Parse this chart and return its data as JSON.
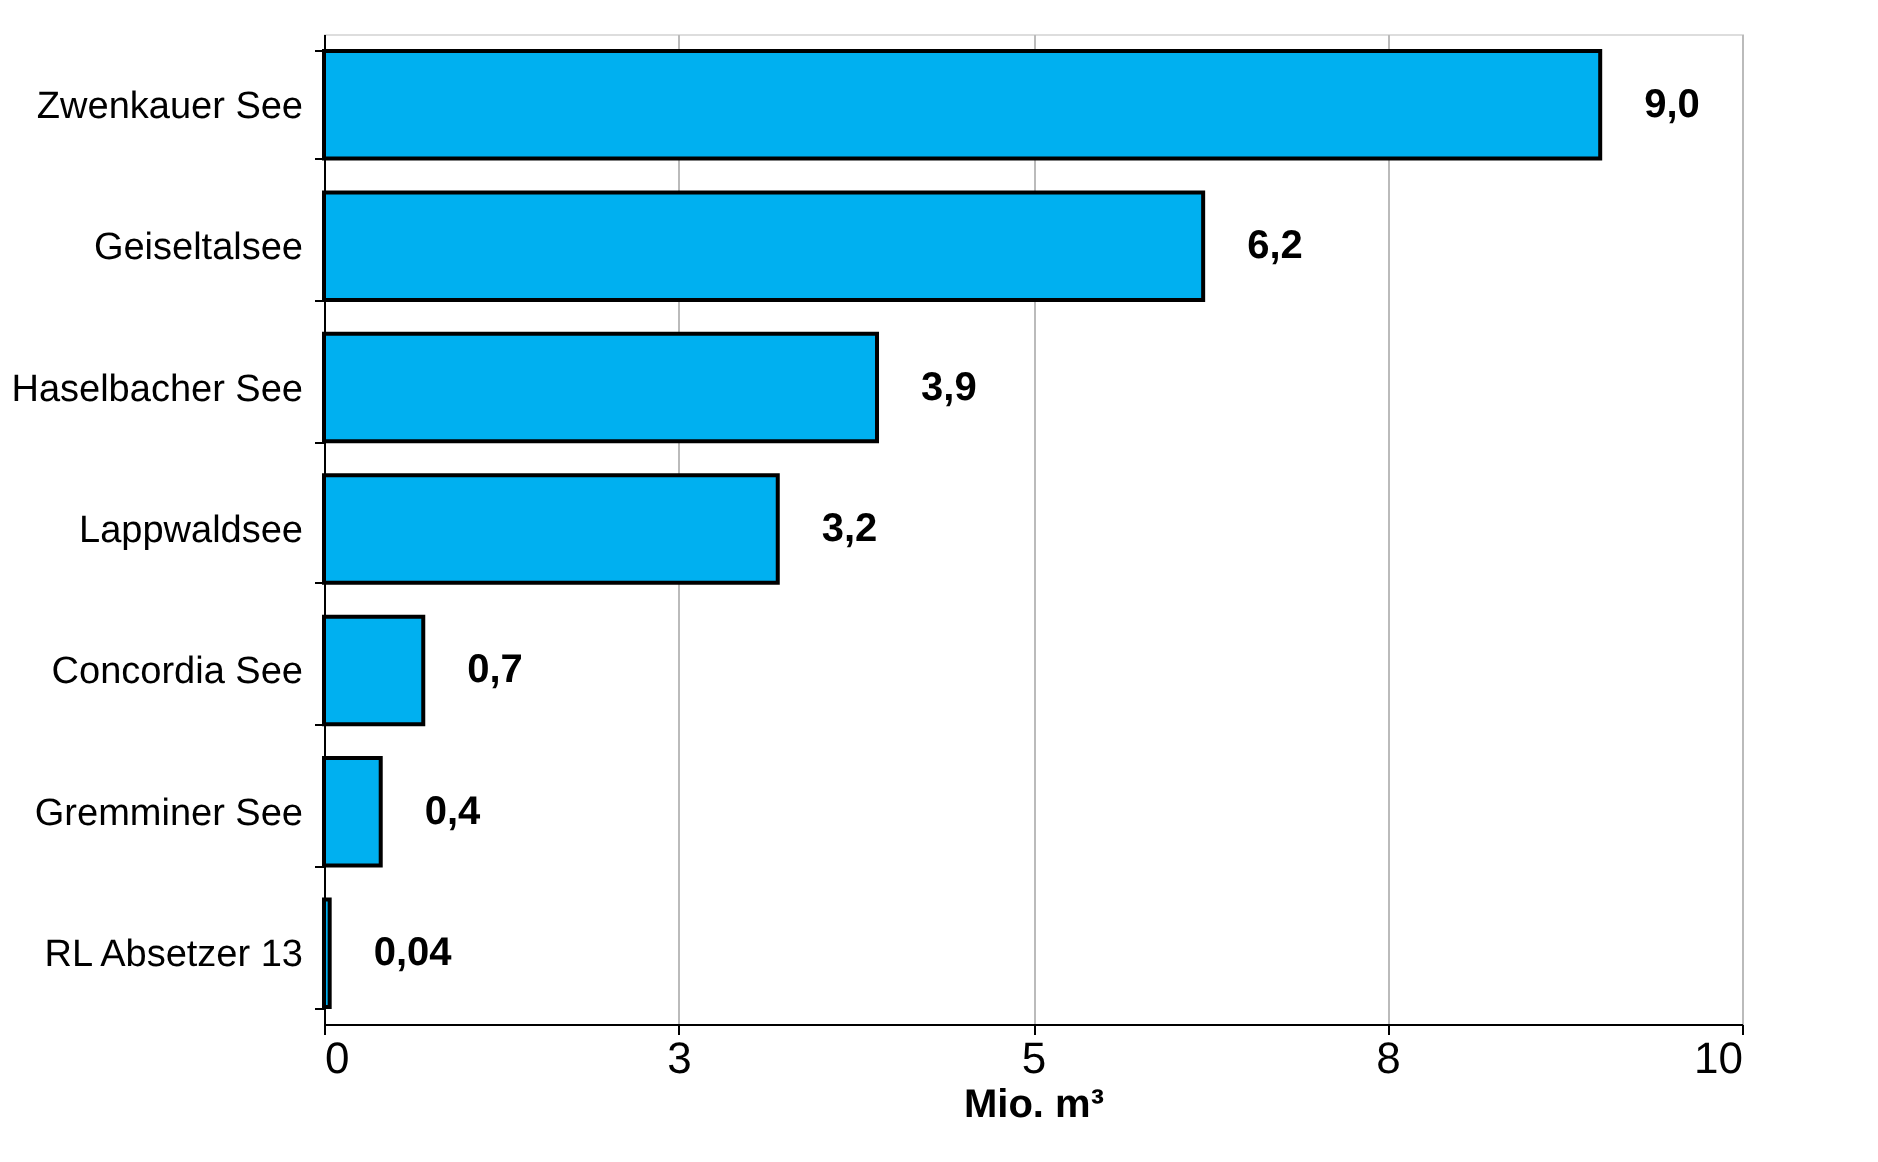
{
  "chart_data": {
    "type": "bar",
    "orientation": "horizontal",
    "xlabel": "Mio. m³",
    "categories": [
      "Zwenkauer See",
      "Geiseltalsee",
      "Haselbacher See",
      "Lappwaldsee",
      "Concordia See",
      "Gremminer See",
      "RL Absetzer 13"
    ],
    "values": [
      9.0,
      6.2,
      3.9,
      3.2,
      0.7,
      0.4,
      0.04
    ],
    "value_labels": [
      "9,0",
      "6,2",
      "3,9",
      "3,2",
      "0,7",
      "0,4",
      "0,04"
    ],
    "color": "#00b0f0",
    "xlim": [
      0,
      10
    ],
    "xticks": [
      0,
      {
        "value": 2.5,
        "label": "3"
      },
      5,
      {
        "value": 7.5,
        "label": "8"
      },
      10
    ],
    "grid": "x"
  }
}
